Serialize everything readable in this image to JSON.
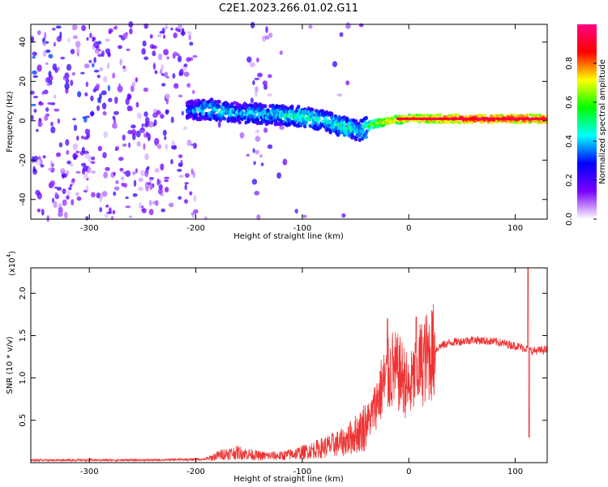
{
  "title": "C2E1.2023.266.01.02.G11",
  "chart_data": [
    {
      "type": "heatmap",
      "name": "spectrogram",
      "xlabel": "Height of straight line (km)",
      "ylabel": "Frequency (Hz)",
      "xlim": [
        -355,
        130
      ],
      "ylim": [
        -50,
        49
      ],
      "xticks": [
        -300,
        -200,
        -100,
        0,
        100
      ],
      "xtick_labels": [
        "-300",
        "-200",
        "-100",
        "0",
        "100"
      ],
      "yticks": [
        -40,
        -20,
        0,
        20,
        40
      ],
      "ytick_labels": [
        "-40",
        "-20",
        "0",
        "20",
        "40"
      ],
      "colorbar": {
        "label": "Normalized spectral amplitude",
        "range": [
          0,
          1
        ],
        "ticks": [
          0.0,
          0.2,
          0.4,
          0.6,
          0.8
        ],
        "tick_labels": [
          "0.0",
          "0.2",
          "0.4",
          "0.6",
          "0.8"
        ],
        "colors": [
          "#ffffff",
          "#7a00ff",
          "#0000ff",
          "#00ffff",
          "#00ff00",
          "#ffff00",
          "#ff0000",
          "#ff0080"
        ]
      },
      "trace": {
        "description_points_x": [
          -205,
          -190,
          -160,
          -120,
          -100,
          -80,
          -55,
          -45,
          -35,
          -20,
          0,
          20,
          60,
          100,
          130
        ],
        "center_freq_hz": [
          5,
          6,
          4,
          3,
          2,
          0,
          -4,
          -5,
          -2,
          0,
          1,
          1,
          1,
          1,
          1
        ],
        "amplitude": [
          0.35,
          0.45,
          0.4,
          0.45,
          0.5,
          0.45,
          0.5,
          0.4,
          0.65,
          0.75,
          0.8,
          0.85,
          0.9,
          0.9,
          0.9
        ]
      }
    },
    {
      "type": "line",
      "name": "snr",
      "xlabel": "Height of straight line (km)",
      "ylabel": "SNR (10 * v/v)",
      "y_multiplier": "(x10",
      "y_multiplier_exp": "4",
      "xlim": [
        -355,
        130
      ],
      "ylim": [
        0,
        2.3
      ],
      "xticks": [
        -300,
        -200,
        -100,
        0,
        100
      ],
      "xtick_labels": [
        "-300",
        "-200",
        "-100",
        "0",
        "100"
      ],
      "yticks": [
        0.5,
        1.0,
        1.5,
        2.0
      ],
      "ytick_labels": [
        "0.5",
        "1.0",
        "1.5",
        "2.0"
      ],
      "color": "#ee3333",
      "envelope": {
        "x": [
          -355,
          -250,
          -190,
          -175,
          -160,
          -140,
          -120,
          -100,
          -80,
          -60,
          -45,
          -35,
          -25,
          -15,
          -5,
          0,
          10,
          20,
          30,
          40,
          60,
          80,
          100,
          110,
          115,
          130
        ],
        "y": [
          0.03,
          0.03,
          0.04,
          0.1,
          0.12,
          0.08,
          0.08,
          0.12,
          0.18,
          0.25,
          0.38,
          0.55,
          0.9,
          1.1,
          1.0,
          0.85,
          1.15,
          1.28,
          1.38,
          1.42,
          1.45,
          1.43,
          1.38,
          1.35,
          1.32,
          1.33
        ]
      },
      "spikes": [
        {
          "x": -20,
          "y": 1.7
        },
        {
          "x": 7,
          "y": 1.72
        },
        {
          "x": 112,
          "y": 2.3
        },
        {
          "x": 113,
          "y": 0.3
        }
      ]
    }
  ]
}
